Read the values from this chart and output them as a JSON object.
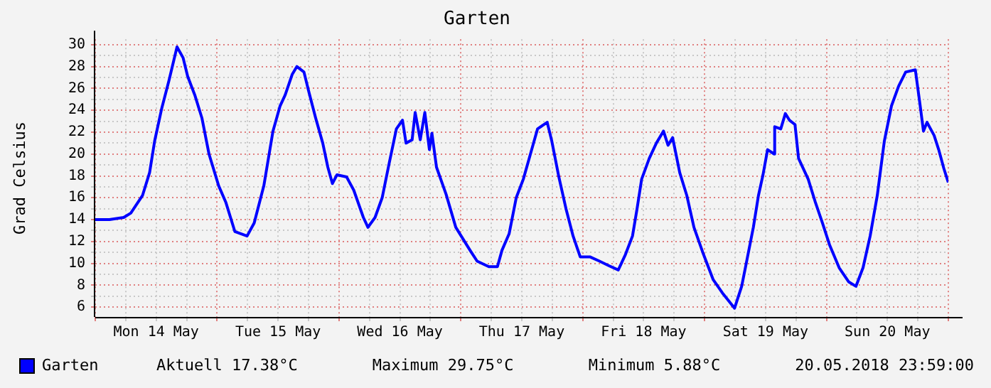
{
  "chart_data": {
    "type": "line",
    "title": "Garten",
    "ylabel": "Grad Celsius",
    "x": [
      "2018-05-14T00:00",
      "2018-05-14T02:48",
      "2018-05-14T05:36",
      "2018-05-14T07:00",
      "2018-05-14T09:18",
      "2018-05-14T10:42",
      "2018-05-14T11:42",
      "2018-05-14T13:06",
      "2018-05-14T14:30",
      "2018-05-14T16:06",
      "2018-05-14T17:18",
      "2018-05-14T18:12",
      "2018-05-14T19:36",
      "2018-05-14T21:00",
      "2018-05-14T22:24",
      "2018-05-15T00:18",
      "2018-05-15T01:42",
      "2018-05-15T03:30",
      "2018-05-15T05:54",
      "2018-05-15T07:18",
      "2018-05-15T09:12",
      "2018-05-15T11:00",
      "2018-05-15T12:24",
      "2018-05-15T13:24",
      "2018-05-15T14:48",
      "2018-05-15T15:42",
      "2018-05-15T17:06",
      "2018-05-15T18:00",
      "2018-05-15T19:24",
      "2018-05-15T20:48",
      "2018-05-15T21:48",
      "2018-05-15T22:42",
      "2018-05-15T23:36",
      "2018-05-16T01:30",
      "2018-05-16T02:54",
      "2018-05-16T04:48",
      "2018-05-16T05:42",
      "2018-05-16T07:06",
      "2018-05-16T08:30",
      "2018-05-16T09:54",
      "2018-05-16T11:18",
      "2018-05-16T12:30",
      "2018-05-16T13:12",
      "2018-05-16T14:24",
      "2018-05-16T15:00",
      "2018-05-16T16:00",
      "2018-05-16T16:54",
      "2018-05-16T17:48",
      "2018-05-16T18:18",
      "2018-05-16T19:12",
      "2018-05-16T21:06",
      "2018-05-16T23:00",
      "2018-05-17T01:48",
      "2018-05-17T03:12",
      "2018-05-17T05:30",
      "2018-05-17T07:12",
      "2018-05-17T08:06",
      "2018-05-17T09:30",
      "2018-05-17T10:54",
      "2018-05-17T12:18",
      "2018-05-17T13:42",
      "2018-05-17T15:06",
      "2018-05-17T17:00",
      "2018-05-17T17:54",
      "2018-05-17T19:18",
      "2018-05-17T20:42",
      "2018-05-17T22:06",
      "2018-05-17T23:30",
      "2018-05-18T01:24",
      "2018-05-18T03:18",
      "2018-05-18T05:06",
      "2018-05-18T07:00",
      "2018-05-18T08:24",
      "2018-05-18T09:48",
      "2018-05-18T10:42",
      "2018-05-18T11:36",
      "2018-05-18T13:06",
      "2018-05-18T14:30",
      "2018-05-18T15:54",
      "2018-05-18T16:48",
      "2018-05-18T17:42",
      "2018-05-18T19:06",
      "2018-05-18T20:30",
      "2018-05-18T21:54",
      "2018-05-18T23:48",
      "2018-05-19T01:42",
      "2018-05-19T03:30",
      "2018-05-19T05:54",
      "2018-05-19T07:18",
      "2018-05-19T08:12",
      "2018-05-19T09:36",
      "2018-05-19T10:36",
      "2018-05-19T11:30",
      "2018-05-19T12:24",
      "2018-05-19T13:42",
      "2018-05-19T13:48",
      "2018-05-19T15:00",
      "2018-05-19T15:54",
      "2018-05-19T16:42",
      "2018-05-19T17:48",
      "2018-05-19T18:30",
      "2018-05-19T20:24",
      "2018-05-19T21:48",
      "2018-05-19T23:12",
      "2018-05-20T00:36",
      "2018-05-20T02:30",
      "2018-05-20T04:24",
      "2018-05-20T05:48",
      "2018-05-20T07:12",
      "2018-05-20T08:36",
      "2018-05-20T10:00",
      "2018-05-20T11:24",
      "2018-05-20T12:48",
      "2018-05-20T14:12",
      "2018-05-20T15:36",
      "2018-05-20T17:30",
      "2018-05-20T18:24",
      "2018-05-20T19:06",
      "2018-05-20T19:48",
      "2018-05-20T21:12",
      "2018-05-20T22:06",
      "2018-05-20T23:06",
      "2018-05-20T23:59"
    ],
    "series": [
      {
        "name": "Garten",
        "color": "#0000ff",
        "values": [
          14.0,
          14.0,
          14.2,
          14.6,
          16.2,
          18.3,
          21.2,
          24.2,
          26.7,
          29.8,
          28.8,
          27.1,
          25.4,
          23.3,
          20.0,
          17.1,
          15.6,
          12.9,
          12.5,
          13.7,
          17.1,
          22.1,
          24.4,
          25.4,
          27.3,
          28.0,
          27.5,
          25.8,
          23.3,
          21.0,
          18.8,
          17.3,
          18.1,
          17.9,
          16.7,
          14.2,
          13.3,
          14.2,
          16.0,
          19.2,
          22.3,
          23.1,
          21.0,
          21.3,
          23.8,
          21.3,
          23.8,
          20.4,
          21.9,
          18.8,
          16.3,
          13.3,
          11.2,
          10.2,
          9.7,
          9.7,
          11.2,
          12.7,
          16.0,
          17.7,
          20.0,
          22.3,
          22.9,
          21.2,
          17.9,
          15.0,
          12.5,
          10.6,
          10.6,
          10.2,
          9.8,
          9.4,
          10.8,
          12.5,
          15.0,
          17.7,
          19.6,
          21.0,
          22.1,
          20.8,
          21.5,
          18.3,
          16.2,
          13.3,
          10.8,
          8.5,
          7.3,
          5.9,
          7.9,
          10.0,
          13.3,
          16.2,
          18.1,
          20.4,
          20.0,
          22.5,
          22.3,
          23.7,
          23.1,
          22.7,
          19.6,
          17.7,
          15.6,
          13.7,
          11.7,
          9.6,
          8.3,
          7.9,
          9.6,
          12.5,
          16.2,
          21.2,
          24.4,
          26.2,
          27.5,
          27.7,
          24.6,
          22.1,
          22.9,
          21.7,
          20.4,
          18.7,
          17.4
        ]
      }
    ],
    "xlim": [
      "2018-05-14T00:00",
      "2018-05-21T00:00"
    ],
    "xticks": [
      {
        "value": "2018-05-14T00:00",
        "label": null
      },
      {
        "value": "2018-05-14T06:00",
        "label": null
      },
      {
        "value": "2018-05-14T12:00",
        "label": "Mon 14 May"
      },
      {
        "value": "2018-05-14T18:00",
        "label": null
      },
      {
        "value": "2018-05-15T00:00",
        "label": null
      },
      {
        "value": "2018-05-15T06:00",
        "label": null
      },
      {
        "value": "2018-05-15T12:00",
        "label": "Tue 15 May"
      },
      {
        "value": "2018-05-15T18:00",
        "label": null
      },
      {
        "value": "2018-05-16T00:00",
        "label": null
      },
      {
        "value": "2018-05-16T06:00",
        "label": null
      },
      {
        "value": "2018-05-16T12:00",
        "label": "Wed 16 May"
      },
      {
        "value": "2018-05-16T18:00",
        "label": null
      },
      {
        "value": "2018-05-17T00:00",
        "label": null
      },
      {
        "value": "2018-05-17T06:00",
        "label": null
      },
      {
        "value": "2018-05-17T12:00",
        "label": "Thu 17 May"
      },
      {
        "value": "2018-05-17T18:00",
        "label": null
      },
      {
        "value": "2018-05-18T00:00",
        "label": null
      },
      {
        "value": "2018-05-18T06:00",
        "label": null
      },
      {
        "value": "2018-05-18T12:00",
        "label": "Fri 18 May"
      },
      {
        "value": "2018-05-18T18:00",
        "label": null
      },
      {
        "value": "2018-05-19T00:00",
        "label": null
      },
      {
        "value": "2018-05-19T06:00",
        "label": null
      },
      {
        "value": "2018-05-19T12:00",
        "label": "Sat 19 May"
      },
      {
        "value": "2018-05-19T18:00",
        "label": null
      },
      {
        "value": "2018-05-20T00:00",
        "label": null
      },
      {
        "value": "2018-05-20T06:00",
        "label": null
      },
      {
        "value": "2018-05-20T12:00",
        "label": "Sun 20 May"
      },
      {
        "value": "2018-05-20T18:00",
        "label": null
      },
      {
        "value": "2018-05-21T00:00",
        "label": null
      }
    ],
    "ylim": [
      5.1,
      30.5
    ],
    "yticks": [
      6,
      {
        "value": 7,
        "label": null
      },
      8,
      {
        "value": 9,
        "label": null
      },
      10,
      {
        "value": 11,
        "label": null
      },
      12,
      {
        "value": 13,
        "label": null
      },
      14,
      {
        "value": 15,
        "label": null
      },
      16,
      {
        "value": 17,
        "label": null
      },
      18,
      {
        "value": 19,
        "label": null
      },
      20,
      {
        "value": 21,
        "label": null
      },
      22,
      {
        "value": 23,
        "label": null
      },
      24,
      {
        "value": 25,
        "label": null
      },
      26,
      {
        "value": 27,
        "label": null
      },
      28,
      {
        "value": 29,
        "label": null
      },
      30
    ],
    "grid": true,
    "legend": "bottom left",
    "marker": "none",
    "line_style": "solid",
    "annotations": [
      "Aktuell 17.38°C",
      "Maximum 29.75°C",
      "Minimum 5.88°C",
      "20.05.2018 23:59:00"
    ]
  }
}
